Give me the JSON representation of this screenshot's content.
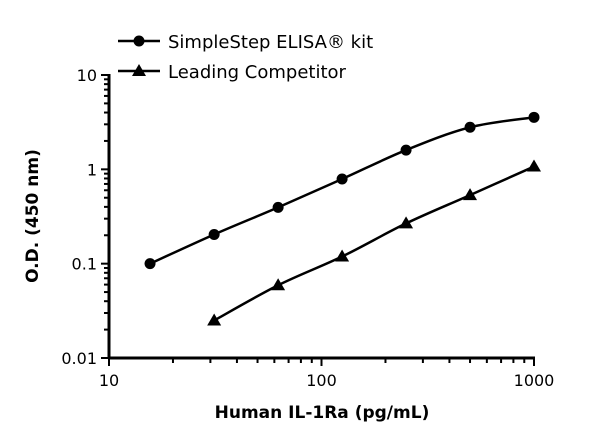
{
  "chart_data": {
    "type": "line",
    "title": "",
    "xlabel": "Human IL-1Ra (pg/mL)",
    "ylabel": "O.D. (450 nm)",
    "xscale": "log",
    "yscale": "log",
    "xlim": [
      10,
      1000
    ],
    "ylim": [
      0.01,
      10
    ],
    "xticks": [
      "10",
      "100",
      "1000"
    ],
    "yticks": [
      "0.01",
      "0.1",
      "1",
      "10"
    ],
    "grid": false,
    "legend_position": "top-left",
    "series": [
      {
        "name": "SimpleStep ELISA® kit",
        "marker": "circle",
        "color": "#000000",
        "x": [
          15.6,
          31.25,
          62.5,
          125,
          250,
          500,
          1000
        ],
        "y": [
          0.1,
          0.204,
          0.395,
          0.79,
          1.6,
          2.79,
          3.56
        ]
      },
      {
        "name": "Leading Competitor",
        "marker": "triangle",
        "color": "#000000",
        "x": [
          31.25,
          62.5,
          125,
          250,
          500,
          1000
        ],
        "y": [
          0.025,
          0.059,
          0.119,
          0.267,
          0.533,
          1.07
        ]
      }
    ]
  }
}
